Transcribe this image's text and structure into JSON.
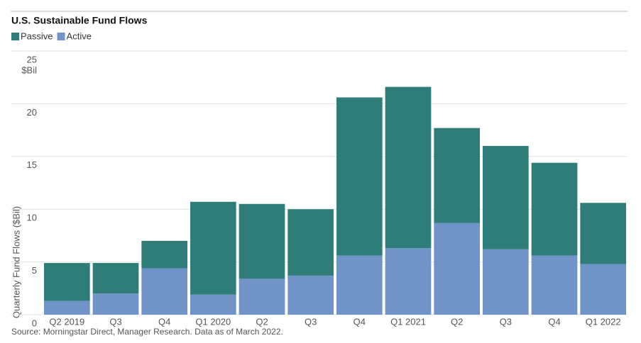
{
  "chart_data": {
    "type": "stacked-bar",
    "title": "U.S. Sustainable Fund Flows",
    "y_unit": "$Bil",
    "ylabel": "Quarterly Fund Flows ($Bil)",
    "source": "Source: Morningstar Direct, Manager Research. Data as of March 2022.",
    "categories": [
      "Q2 2019",
      "Q3",
      "Q4",
      "Q1 2020",
      "Q2",
      "Q3",
      "Q4",
      "Q1 2021",
      "Q2",
      "Q3",
      "Q4",
      "Q1 2022"
    ],
    "series": [
      {
        "name": "Passive",
        "color": "#2e7d78",
        "values": [
          3.6,
          2.9,
          2.6,
          8.8,
          7.1,
          6.3,
          15.0,
          15.3,
          9.0,
          9.8,
          8.8,
          5.8
        ]
      },
      {
        "name": "Active",
        "color": "#7093c8",
        "values": [
          1.3,
          2.0,
          4.4,
          1.9,
          3.4,
          3.7,
          5.6,
          6.3,
          8.7,
          6.2,
          5.6,
          4.8
        ]
      }
    ],
    "ylim": [
      0,
      25
    ],
    "yticks": [
      0,
      5,
      10,
      15,
      20,
      25
    ],
    "grid": true
  }
}
